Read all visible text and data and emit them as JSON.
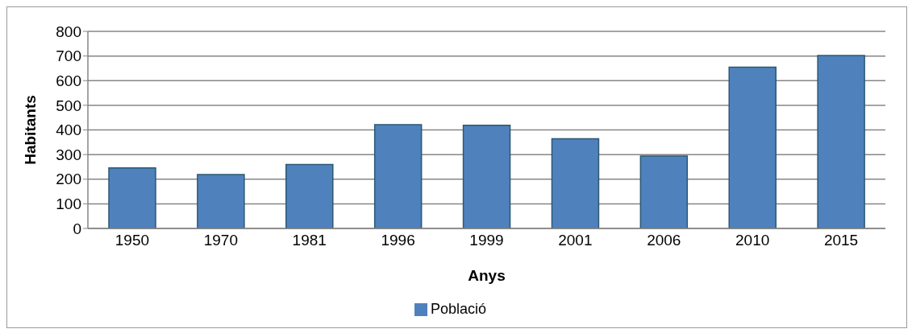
{
  "chart_data": {
    "type": "bar",
    "xlabel": "Anys",
    "ylabel": "Habitants",
    "categories": [
      "1950",
      "1970",
      "1981",
      "1996",
      "1999",
      "2001",
      "2006",
      "2010",
      "2015"
    ],
    "series": [
      {
        "name": "Població",
        "color": "#4f81bd",
        "values": [
          246,
          219,
          260,
          421,
          419,
          364,
          294,
          655,
          702
        ]
      }
    ],
    "ylim": [
      0,
      800
    ],
    "yticks": [
      0,
      100,
      200,
      300,
      400,
      500,
      600,
      700,
      800
    ],
    "grid": "y",
    "legend": "bottom"
  }
}
